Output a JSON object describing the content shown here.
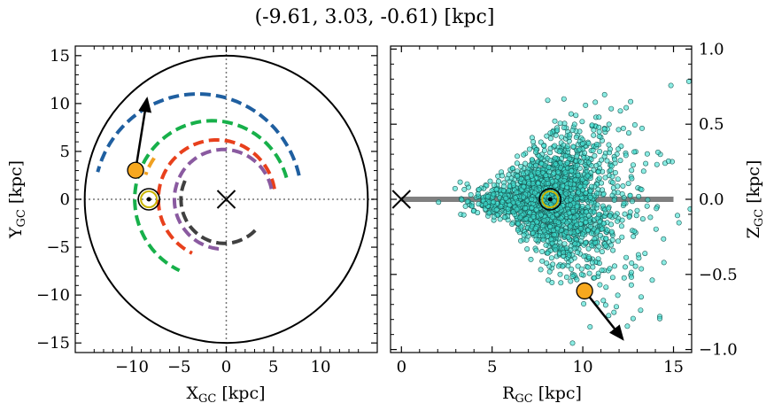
{
  "figure": {
    "title": "(-9.61, 3.03, -0.61) [kpc]"
  },
  "colors": {
    "arm_blue": "#1f5fa0",
    "arm_green": "#17b04a",
    "arm_orange_short": "#f0a020",
    "arm_red": "#e8401c",
    "arm_purple": "#8a5aa0",
    "arm_gray": "#404040",
    "star": "#f7a81e",
    "cluster": "#3ee0d0",
    "sun_ring": "#c8b400",
    "plane_line": "#808080"
  },
  "chart_data": [
    {
      "type": "line",
      "name": "galactic-plane-view",
      "xlabel": "X_GC [kpc]",
      "ylabel": "Y_GC [kpc]",
      "xlim": [
        -16,
        16
      ],
      "ylim": [
        -16,
        16
      ],
      "xticks": [
        -10,
        -5,
        0,
        5,
        10
      ],
      "xtick_labels": [
        "−10",
        "−5",
        "0",
        "5",
        "10"
      ],
      "yticks": [
        -15,
        -10,
        -5,
        0,
        5,
        10,
        15
      ],
      "ytick_labels": [
        "−15",
        "−10",
        "−5",
        "0",
        "5",
        "10",
        "15"
      ],
      "boundary_circle_radius": 15,
      "galactic_center": [
        0,
        0
      ],
      "sun_position": [
        -8.2,
        0
      ],
      "star_position": [
        -9.61,
        3.03
      ],
      "star_velocity_arrow_end": [
        -8.4,
        10.5
      ],
      "arms": [
        {
          "color_key": "arm_blue",
          "radius": 11,
          "center": [
            -3,
            0
          ],
          "start_angle_deg": 13,
          "end_angle_deg": 165
        },
        {
          "color_key": "arm_green",
          "radius": 8.2,
          "center": [
            -1.5,
            0
          ],
          "start_angle_deg": 16,
          "end_angle_deg": 245
        },
        {
          "color_key": "arm_orange_short",
          "radius": 7.5,
          "center": [
            -1.5,
            0
          ],
          "start_angle_deg": 145,
          "end_angle_deg": 160
        },
        {
          "color_key": "arm_red",
          "radius": 6.2,
          "center": [
            -1.0,
            0
          ],
          "start_angle_deg": 10,
          "end_angle_deg": 245
        },
        {
          "color_key": "arm_purple",
          "radius": 5.2,
          "center": [
            -0.3,
            0
          ],
          "start_angle_deg": 12,
          "end_angle_deg": 270
        },
        {
          "color_key": "arm_gray",
          "radius": 4.6,
          "center": [
            -0.2,
            0
          ],
          "start_angle_deg": 155,
          "end_angle_deg": 320
        }
      ]
    },
    {
      "type": "scatter",
      "name": "meridional-view",
      "xlabel": "R_GC [kpc]",
      "ylabel": "Z_GC [kpc]",
      "xlim": [
        -0.6,
        16
      ],
      "ylim": [
        -1.02,
        1.02
      ],
      "xticks": [
        0,
        5,
        10,
        15
      ],
      "xtick_labels": [
        "0",
        "5",
        "10",
        "15"
      ],
      "yticks": [
        -1.0,
        -0.5,
        0.0,
        0.5,
        1.0
      ],
      "ytick_labels": [
        "−1.0",
        "−0.5",
        "0.0",
        "0.5",
        "1.0"
      ],
      "galactic_center": [
        0,
        0
      ],
      "sun_position": [
        8.2,
        0
      ],
      "plane_line_x": [
        0,
        15
      ],
      "star_position": [
        10.1,
        -0.61
      ],
      "star_velocity_arrow_end": [
        12.2,
        -0.93
      ],
      "cluster": {
        "center": [
          8.2,
          0
        ],
        "n_points": 2200,
        "note_values": "synthetic spread of open clusters concentrated near R=8.2, Z=0, widening with R"
      }
    }
  ]
}
